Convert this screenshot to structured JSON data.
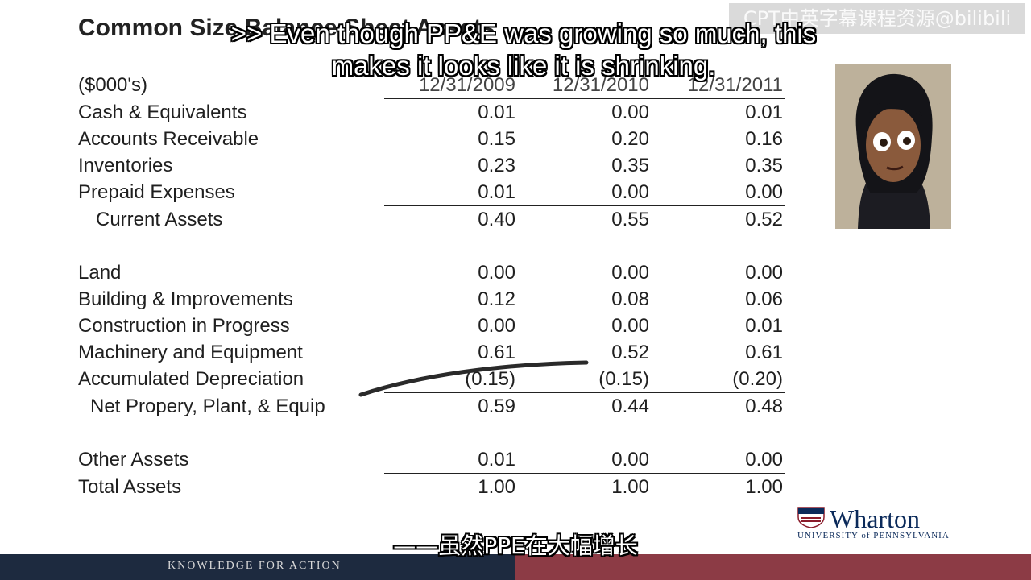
{
  "slide": {
    "title": "Common Size Balance Sheet Assets",
    "watermark": "CPT中英字幕课程资源@bilibili",
    "subtitle_en": ">> Even though PP&E was growing so much, this makes it looks like it is shrinking.",
    "subtitle_zh": "——虽然PPE在大幅增长",
    "footer_text": "KNOWLEDGE FOR ACTION",
    "logo": {
      "name": "Wharton",
      "university": "UNIVERSITY of PENNSYLVANIA"
    }
  },
  "table": {
    "units_label": "($000's)",
    "years": [
      "12/31/2009",
      "12/31/2010",
      "12/31/2011"
    ],
    "rows": [
      {
        "label": "Cash & Equivalents",
        "values": [
          "0.01",
          "0.00",
          "0.01"
        ]
      },
      {
        "label": "Accounts Receivable",
        "values": [
          "0.15",
          "0.20",
          "0.16"
        ]
      },
      {
        "label": "Inventories",
        "values": [
          "0.23",
          "0.35",
          "0.35"
        ]
      },
      {
        "label": "Prepaid Expenses",
        "values": [
          "0.01",
          "0.00",
          "0.00"
        ]
      },
      {
        "label": "Current Assets",
        "values": [
          "0.40",
          "0.55",
          "0.52"
        ]
      },
      {
        "label": "Land",
        "values": [
          "0.00",
          "0.00",
          "0.00"
        ]
      },
      {
        "label": "Building & Improvements",
        "values": [
          "0.12",
          "0.08",
          "0.06"
        ]
      },
      {
        "label": "Construction in Progress",
        "values": [
          "0.00",
          "0.00",
          "0.01"
        ]
      },
      {
        "label": "Machinery and Equipment",
        "values": [
          "0.61",
          "0.52",
          "0.61"
        ]
      },
      {
        "label": "Accumulated Depreciation",
        "values": [
          "(0.15)",
          "(0.15)",
          "(0.20)"
        ]
      },
      {
        "label": "Net Propery, Plant, & Equip",
        "values": [
          "0.59",
          "0.44",
          "0.48"
        ]
      },
      {
        "label": "Other Assets",
        "values": [
          "0.01",
          "0.00",
          "0.00"
        ]
      },
      {
        "label": "Total Assets",
        "values": [
          "1.00",
          "1.00",
          "1.00"
        ]
      }
    ]
  },
  "colors": {
    "title_rule": "#8a1c2b",
    "footer_left": "#1d2a3f",
    "footer_right": "#8c3b45",
    "wharton_blue": "#0b2a5a"
  },
  "icons": {
    "penn_shield": "shield-icon",
    "avatar": "presenter-avatar"
  }
}
